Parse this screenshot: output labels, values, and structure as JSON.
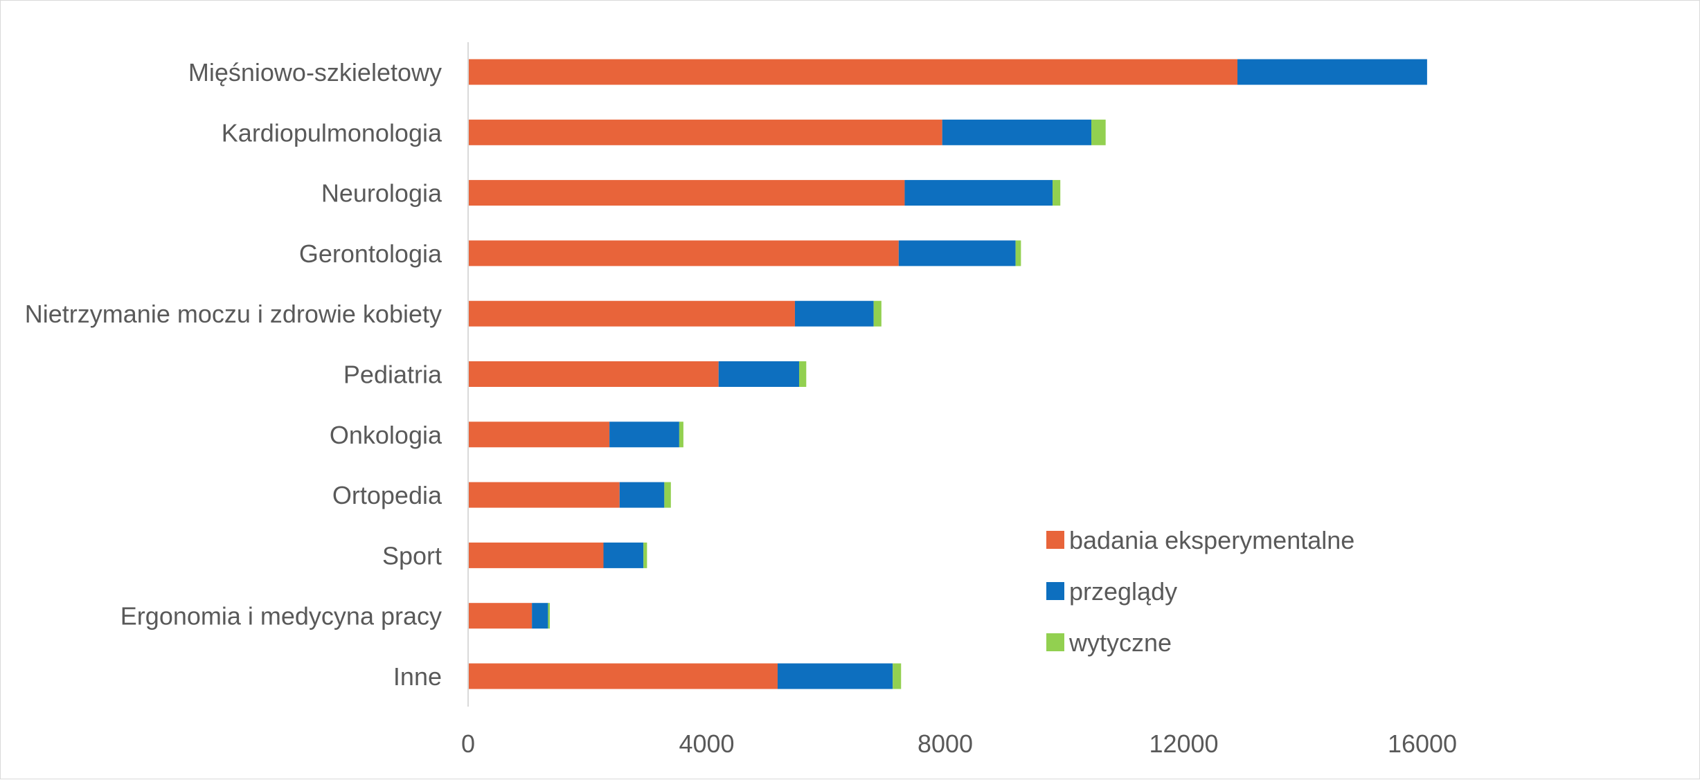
{
  "chart_data": {
    "type": "bar",
    "orientation": "horizontal",
    "stacked": true,
    "title": "",
    "xlabel": "",
    "ylabel": "",
    "xlim": [
      0,
      16000
    ],
    "x_ticks": [
      0,
      4000,
      8000,
      12000,
      16000
    ],
    "grid": false,
    "legend_position": "bottom-right inside plot",
    "categories": [
      "Mięśniowo-szkieletowy",
      "Kardiopulmonologia",
      "Neurologia",
      "Gerontologia",
      "Nietrzymanie moczu i zdrowie kobiety",
      "Pediatria",
      "Onkologia",
      "Ortopedia",
      "Sport",
      "Ergonomia i medycyna pracy",
      "Inne"
    ],
    "series": [
      {
        "name": "badania eksperymentalne",
        "color": "#e8643a",
        "values": [
          12900,
          7950,
          7320,
          7220,
          5480,
          4200,
          2370,
          2540,
          2270,
          1070,
          5190
        ]
      },
      {
        "name": "przeglądy",
        "color": "#0d6fbf",
        "values": [
          3180,
          2500,
          2480,
          1960,
          1320,
          1350,
          1170,
          750,
          670,
          270,
          1930
        ]
      },
      {
        "name": "wytyczne",
        "color": "#92d050",
        "values": [
          0,
          240,
          130,
          90,
          130,
          120,
          70,
          110,
          60,
          30,
          140
        ]
      }
    ]
  }
}
